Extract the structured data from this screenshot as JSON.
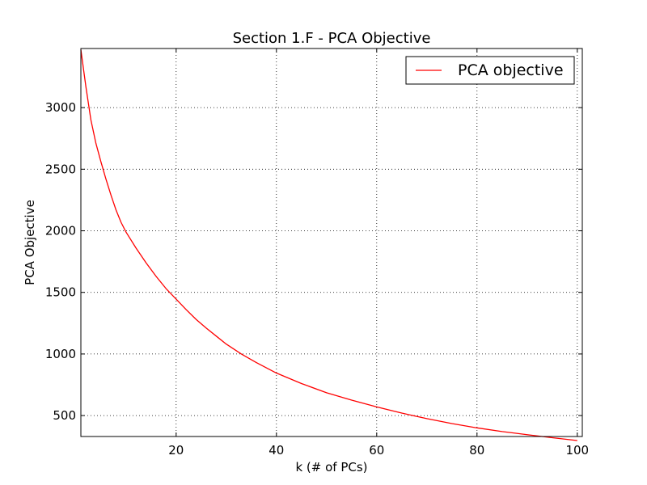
{
  "chart_data": {
    "type": "line",
    "title": "Section 1.F - PCA Objective",
    "xlabel": "k (# of PCs)",
    "ylabel": "PCA Objective",
    "xlim": [
      1,
      101
    ],
    "ylim": [
      330,
      3480
    ],
    "xticks": [
      20,
      40,
      60,
      80,
      100
    ],
    "yticks": [
      500,
      1000,
      1500,
      2000,
      2500,
      3000
    ],
    "grid": true,
    "legend_position": "upper-right",
    "series": [
      {
        "name": "PCA objective",
        "color": "#ff0000",
        "x": [
          1,
          2,
          3,
          4,
          5,
          6,
          7,
          8,
          9,
          10,
          12,
          14,
          16,
          18,
          20,
          22,
          24,
          26,
          28,
          30,
          33,
          36,
          40,
          45,
          50,
          55,
          60,
          65,
          70,
          75,
          80,
          85,
          90,
          95,
          100
        ],
        "y": [
          3470,
          3170,
          2900,
          2710,
          2560,
          2420,
          2290,
          2170,
          2070,
          1990,
          1860,
          1740,
          1630,
          1530,
          1445,
          1360,
          1280,
          1210,
          1145,
          1080,
          1000,
          930,
          845,
          760,
          685,
          625,
          570,
          520,
          475,
          435,
          400,
          370,
          345,
          320,
          297
        ]
      }
    ]
  }
}
